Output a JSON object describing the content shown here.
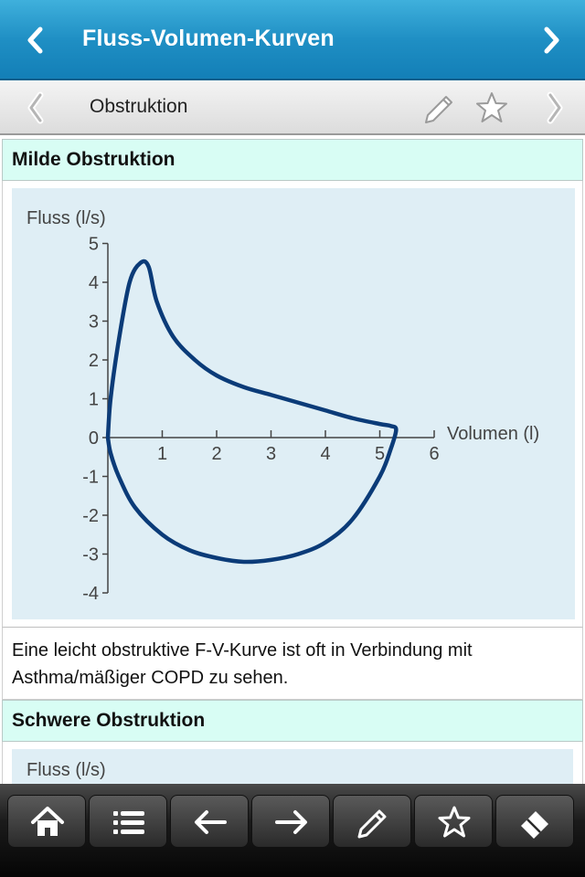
{
  "header": {
    "title": "Fluss-Volumen-Kurven",
    "back_icon": "chevron-left-icon",
    "forward_icon": "chevron-right-icon"
  },
  "subheader": {
    "title": "Obstruktion",
    "icons": [
      "chevron-left-icon",
      "pencil-icon",
      "star-icon",
      "chevron-right-icon"
    ]
  },
  "sections": [
    {
      "heading": "Milde Obstruktion",
      "caption": "Eine leicht obstruktive F-V-Kurve ist oft in Verbindung mit Asthma/mäßiger COPD zu sehen."
    },
    {
      "heading": "Schwere Obstruktion",
      "figure_partial_label": "Fluss (l/s)"
    }
  ],
  "chart_data": {
    "type": "line",
    "title": "",
    "xlabel": "Volumen (l)",
    "ylabel": "Fluss (l/s)",
    "xlim": [
      0,
      6
    ],
    "ylim": [
      -4,
      5
    ],
    "x_ticks": [
      "1",
      "2",
      "3",
      "4",
      "5",
      "6"
    ],
    "y_ticks": [
      "5",
      "4",
      "3",
      "2",
      "1",
      "0",
      "-1",
      "-2",
      "-3",
      "-4"
    ],
    "line_color": "#0b3b78",
    "series": [
      {
        "x": [
          0.0,
          0.05,
          0.2,
          0.4,
          0.6,
          0.75,
          0.9,
          1.2,
          1.6,
          2.0,
          2.5,
          3.0,
          3.5,
          4.0,
          4.5,
          5.0,
          5.2,
          5.3,
          5.2,
          5.0,
          4.5,
          4.0,
          3.5,
          3.0,
          2.5,
          2.0,
          1.5,
          1.0,
          0.5,
          0.2,
          0.05,
          0.0
        ],
        "y": [
          0.0,
          1.0,
          2.5,
          4.0,
          4.5,
          4.4,
          3.5,
          2.6,
          2.0,
          1.6,
          1.3,
          1.1,
          0.9,
          0.7,
          0.5,
          0.35,
          0.3,
          0.2,
          -0.3,
          -1.0,
          -2.1,
          -2.7,
          -3.0,
          -3.15,
          -3.2,
          -3.1,
          -2.9,
          -2.5,
          -1.8,
          -1.0,
          -0.4,
          0.0
        ]
      }
    ]
  },
  "toolbar": {
    "items": [
      "home-icon",
      "list-icon",
      "arrow-left-icon",
      "arrow-right-icon",
      "pencil-icon",
      "star-icon",
      "eraser-icon"
    ]
  }
}
